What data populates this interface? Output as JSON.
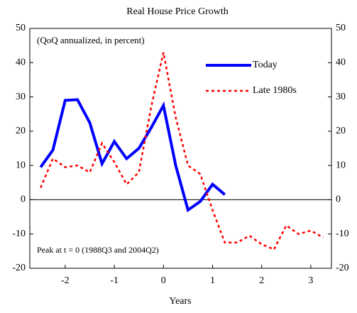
{
  "chart_data": {
    "type": "line",
    "title": "Real House Price Growth",
    "xlabel": "Years",
    "annotations": [
      "(QoQ annualized, in percent)",
      "Peak at t = 0 (1988Q3 and 2004Q2)"
    ],
    "x": [
      -2.5,
      -2.25,
      -2,
      -1.75,
      -1.5,
      -1.25,
      -1,
      -0.75,
      -0.5,
      -0.25,
      0,
      0.25,
      0.5,
      0.75,
      1,
      1.25,
      1.5,
      1.75,
      2,
      2.25,
      2.5,
      2.75,
      3,
      3.25
    ],
    "series": [
      {
        "name": "Today",
        "color": "#0000ff",
        "dash": false,
        "values": [
          9.5,
          14.5,
          29,
          29.2,
          22.5,
          10.5,
          17,
          12,
          15,
          21,
          27.5,
          10,
          -3,
          -0.5,
          4.5,
          1.5,
          null,
          null,
          null,
          null,
          null,
          null,
          null,
          null
        ]
      },
      {
        "name": "Late 1980s",
        "color": "#ff0000",
        "dash": true,
        "values": [
          3.5,
          12,
          9.5,
          10,
          8,
          16.5,
          11,
          4.5,
          8,
          27,
          43,
          24,
          10,
          7.5,
          -3,
          -12.5,
          -12.5,
          -10.5,
          -13,
          -14.5,
          -7.5,
          -10,
          -9,
          -11
        ]
      }
    ],
    "xlim": [
      -2.72,
      3.42
    ],
    "ylim": [
      -20,
      50
    ],
    "xticks": [
      -2,
      -1,
      0,
      1,
      2,
      3
    ],
    "yticks": [
      -20,
      -10,
      0,
      10,
      20,
      30,
      40,
      50
    ]
  }
}
